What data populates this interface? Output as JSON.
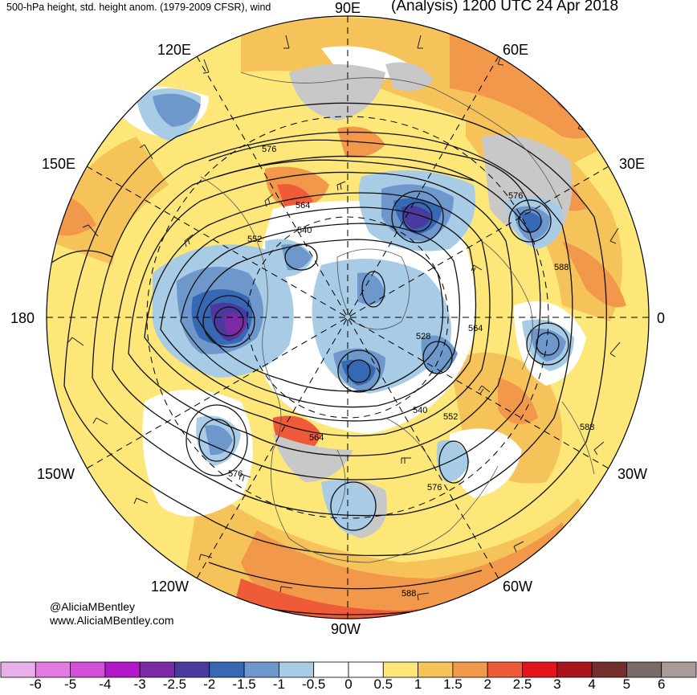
{
  "title_left": "500-hPa height, std. height anom. (1979-2009 CFSR), wind",
  "title_right": "(Analysis) 1200 UTC 24 Apr 2018",
  "credits": [
    "@AliciaMBentley",
    "www.AliciaMBentley.com"
  ],
  "longitude_labels": [
    "90E",
    "120E",
    "60E",
    "150E",
    "30E",
    "180",
    "0",
    "150W",
    "30W",
    "120W",
    "60W",
    "90W"
  ],
  "contour_labels": [
    "576",
    "564",
    "540",
    "552",
    "576",
    "588",
    "564",
    "528",
    "540",
    "552",
    "588",
    "564",
    "576",
    "576",
    "588"
  ],
  "colorbar": {
    "colors": [
      "#e8b0e8",
      "#e27ce2",
      "#d050d6",
      "#b018c8",
      "#7a2aa4",
      "#4a3a9e",
      "#3768b4",
      "#6e98cc",
      "#a8cce6",
      "#ffffff",
      "#ffffff",
      "#fce778",
      "#f5c35a",
      "#f2984a",
      "#ef5a38",
      "#e3151b",
      "#a8151b",
      "#752e2e",
      "#7a6a6a",
      "#aa9a9a"
    ],
    "labels": [
      "-6",
      "-5",
      "-4",
      "-3",
      "-2.5",
      "-2",
      "-1.5",
      "-1",
      "-0.5",
      "0",
      "0.5",
      "1",
      "1.5",
      "2",
      "2.5",
      "3",
      "4",
      "5",
      "6"
    ]
  },
  "colors": {
    "ocean_bg": "#fce778",
    "warm_anom": "#f2984a",
    "strong_warm": "#ef5a38",
    "neutral": "#ffffff",
    "neg_light": "#a8cce6",
    "neg_mid": "#6e98cc",
    "neg_strong": "#3768b4",
    "neg_deep": "#4a3a9e",
    "neg_core": "#7a2aa4",
    "gray": "#c8c8c8"
  }
}
